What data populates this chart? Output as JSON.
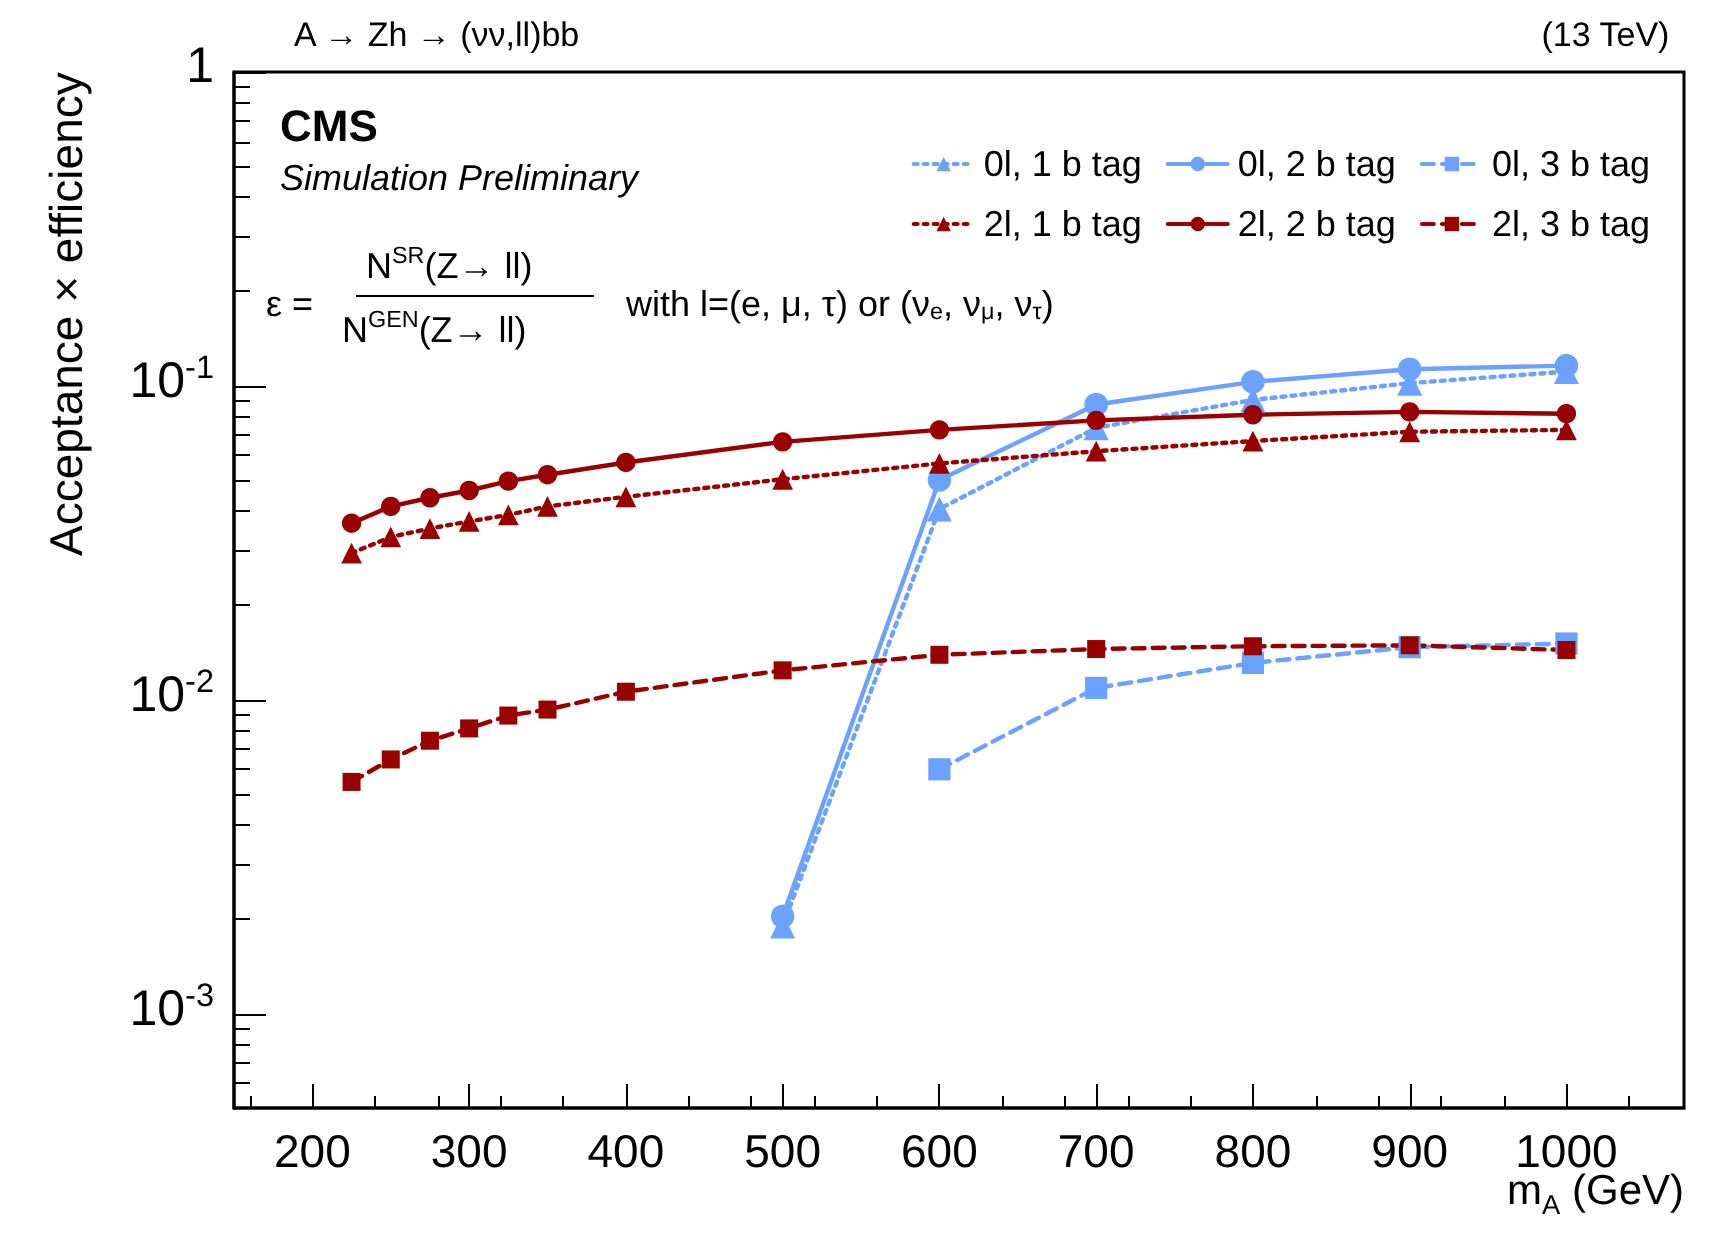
{
  "chart_data": {
    "type": "line",
    "title": "A → Zh → (νν,ll)bb",
    "subtitle": "(13 TeV)",
    "xlabel": "m$_{A}$ (GeV)",
    "ylabel": "Acceptance × efficiency",
    "annotations": [
      "CMS",
      "Simulation Preliminary",
      "ε =",
      "N$^{SR}$(Z→ ll)",
      "N$^{GEN}$(Z→ ll)",
      "with l=(e, μ, τ) or (ν$_{e}$, ν$_{μ}$, ν$_{τ}$)"
    ],
    "x": [
      225,
      250,
      275,
      300,
      325,
      350,
      400,
      500,
      600,
      700,
      800,
      900,
      1000
    ],
    "series": [
      {
        "name": "0l, 1 b tag",
        "color": "#6ba1ff",
        "marker": "triangle",
        "line_style": "dotted",
        "values": [
          null,
          null,
          null,
          null,
          null,
          null,
          null,
          0.0019,
          0.0405,
          0.0735,
          0.0902,
          0.102,
          0.111
        ]
      },
      {
        "name": "0l, 2 b tag",
        "color": "#6ba1ff",
        "marker": "circle",
        "line_style": "solid",
        "values": [
          null,
          null,
          null,
          null,
          null,
          null,
          null,
          0.00204,
          0.0501,
          0.0872,
          0.103,
          0.113,
          0.116
        ]
      },
      {
        "name": "0l, 3 b tag",
        "color": "#6ba1ff",
        "marker": "square",
        "line_style": "dashed",
        "values": [
          null,
          null,
          null,
          null,
          null,
          null,
          null,
          null,
          0.006,
          0.0109,
          0.0131,
          0.0147,
          0.0151
        ]
      },
      {
        "name": "2l, 1 b tag",
        "color": "#990000",
        "marker": "triangle",
        "line_style": "dotted",
        "values": [
          0.0293,
          0.033,
          0.0351,
          0.037,
          0.0388,
          0.0413,
          0.0443,
          0.0504,
          0.0566,
          0.0619,
          0.0667,
          0.0714,
          0.0724
        ]
      },
      {
        "name": "2l, 2 b tag",
        "color": "#990000",
        "marker": "circle",
        "line_style": "solid",
        "values": [
          0.0365,
          0.0413,
          0.044,
          0.0464,
          0.0497,
          0.0521,
          0.057,
          0.0663,
          0.0724,
          0.0776,
          0.0809,
          0.0826,
          0.0815
        ]
      },
      {
        "name": "2l, 3 b tag",
        "color": "#990000",
        "marker": "square",
        "line_style": "dashed",
        "values": [
          0.00547,
          0.00645,
          0.0074,
          0.0081,
          0.0089,
          0.0093,
          0.0106,
          0.0124,
          0.0139,
          0.0145,
          0.0148,
          0.0149,
          0.0144
        ]
      }
    ],
    "xlim": [
      150,
      1075
    ],
    "xticks": [
      200,
      300,
      400,
      500,
      600,
      700,
      800,
      900,
      1000
    ],
    "ylim": [
      0.0005,
      1
    ],
    "yticks": [
      {
        "value": 1,
        "label": "1"
      },
      {
        "value": 0.1,
        "label": "10$^{-1}$"
      },
      {
        "value": 0.01,
        "label": "10$^{-2}$"
      },
      {
        "value": 0.001,
        "label": "10$^{-3}$"
      }
    ],
    "log": "y",
    "grid": false,
    "legend": "top right"
  }
}
